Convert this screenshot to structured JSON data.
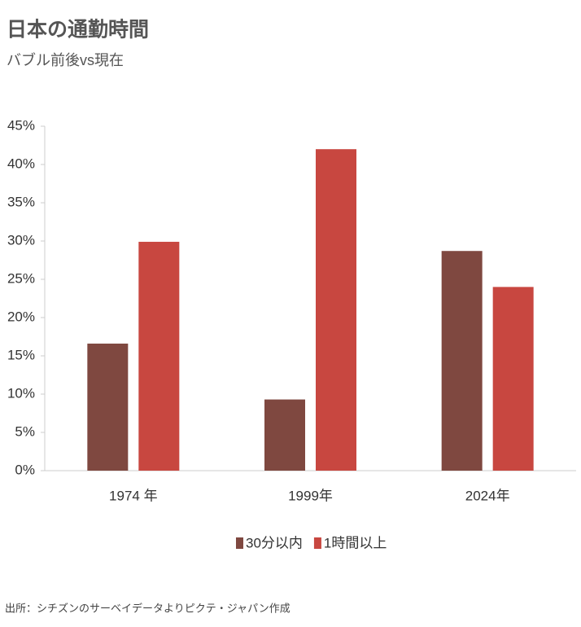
{
  "chart_data": {
    "type": "bar",
    "title": "日本の通勤時間",
    "subtitle": "バブル前後vs現在",
    "source": "出所：シチズンのサーベイデータよりピクテ・ジャパン作成",
    "categories": [
      "1974 年",
      "1999年",
      "2024年"
    ],
    "series": [
      {
        "name": "30分以内",
        "color": "#7f4840",
        "values": [
          16.6,
          9.3,
          28.7
        ]
      },
      {
        "name": "1時間以上",
        "color": "#c84740",
        "values": [
          29.9,
          42.0,
          24.0
        ]
      }
    ],
    "ylim": [
      0,
      45
    ],
    "yticks": [
      {
        "value": 0,
        "label": "0%"
      },
      {
        "value": 5,
        "label": "5%"
      },
      {
        "value": 10,
        "label": "10%"
      },
      {
        "value": 15,
        "label": "15%"
      },
      {
        "value": 20,
        "label": "20%"
      },
      {
        "value": 25,
        "label": "25%"
      },
      {
        "value": 30,
        "label": "30%"
      },
      {
        "value": 35,
        "label": "35%"
      },
      {
        "value": 40,
        "label": "40%"
      },
      {
        "value": 45,
        "label": "45%"
      }
    ],
    "grid": false,
    "legend": "bottom"
  }
}
